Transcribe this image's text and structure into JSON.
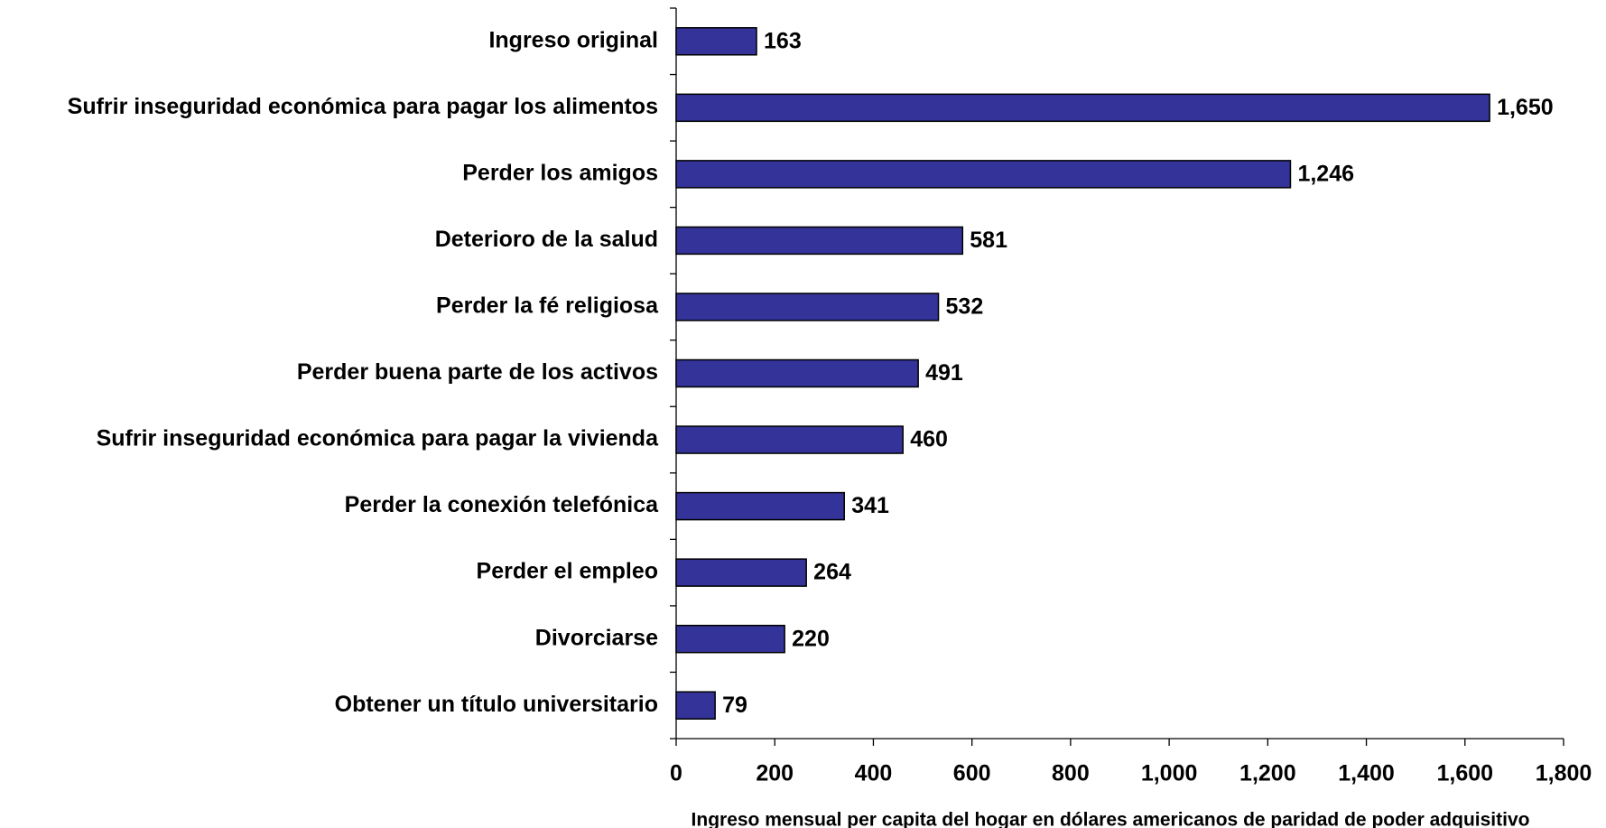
{
  "chart_data": {
    "type": "bar",
    "orientation": "horizontal",
    "x_label": "Ingreso mensual per capita del hogar en dólares americanos de paridad de poder adquisitivo",
    "categories": [
      "Ingreso original",
      "Sufrir inseguridad económica para pagar los alimentos",
      "Perder los amigos",
      "Deterioro de la salud",
      "Perder la fé religiosa",
      "Perder buena parte de los activos",
      "Sufrir inseguridad económica para pagar la vivienda",
      "Perder la conexión telefónica",
      "Perder el empleo",
      "Divorciarse",
      "Obtener un título universitario"
    ],
    "values": [
      163,
      1650,
      1246,
      581,
      532,
      491,
      460,
      341,
      264,
      220,
      79
    ],
    "value_labels": [
      "163",
      "1,650",
      "1,246",
      "581",
      "532",
      "491",
      "460",
      "341",
      "264",
      "220",
      "79"
    ],
    "color": "#333399",
    "xlim": [
      0,
      1800
    ],
    "xticks": [
      0,
      200,
      400,
      600,
      800,
      {
        "value": 1000,
        "label": "1,000"
      },
      {
        "value": 1200,
        "label": "1,200"
      },
      {
        "value": 1400,
        "label": "1,400"
      },
      {
        "value": 1600,
        "label": "1,600"
      },
      {
        "value": 1800,
        "label": "1,800"
      }
    ],
    "grid": false
  }
}
